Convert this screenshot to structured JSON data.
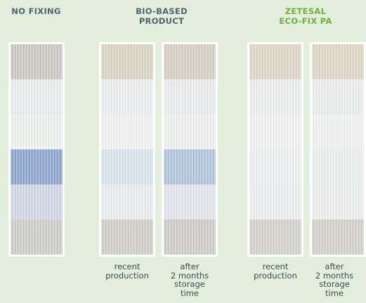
{
  "headings": {
    "no_fixing": "NO FIXING",
    "bio_based": "BIO-BASED\nPRODUCT",
    "zetesal": "ZETESAL\nECO-FIX PA"
  },
  "captions": {
    "bio_recent": "recent\nproduction",
    "bio_after": "after\n2 months\nstorage\ntime",
    "zet_recent": "recent\nproduction",
    "zet_after": "after\n2 months\nstorage\ntime"
  },
  "colors": {
    "background": "#e3eedd",
    "heading": "#4e6571",
    "heading_accent": "#6db13a"
  },
  "strips": {
    "no_fixing": [
      "#cdcbc5",
      "#eceef0",
      "#f2f4f2",
      "#8ea6d2",
      "#d4d9e8",
      "#d0cfcc"
    ],
    "bio_recent": [
      "#dcd6c6",
      "#eef0f1",
      "#f3f5f3",
      "#dde6f0",
      "#eceef2",
      "#d3d1cc"
    ],
    "bio_after": [
      "#d8d3c5",
      "#eceef0",
      "#f2f4f2",
      "#b3c6e0",
      "#e4e7ee",
      "#d0ceca"
    ],
    "zet_recent": [
      "#e1d9c8",
      "#eff1f1",
      "#f3f5f3",
      "#f0f2f3",
      "#f0f1f2",
      "#d6d4ce"
    ],
    "zet_after": [
      "#e0d8c7",
      "#eef0f0",
      "#f3f5f3",
      "#eff1f2",
      "#eff0f1",
      "#d5d3cd"
    ]
  }
}
